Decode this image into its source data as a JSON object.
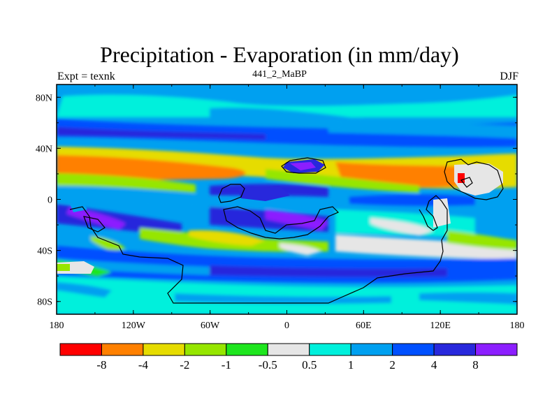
{
  "title": "Precipitation - Evaporation (in mm/day)",
  "experiment_label": "Expt = texnk",
  "case_label": "441_2_MaBP",
  "season_label": "DJF",
  "lat_ticks": [
    "80N",
    "40N",
    "0",
    "40S",
    "80S"
  ],
  "lon_ticks": [
    "180",
    "120W",
    "60W",
    "0",
    "60E",
    "120E",
    "180"
  ],
  "colorbar": {
    "colors": [
      "#ff0000",
      "#ff8000",
      "#e6dc00",
      "#96e600",
      "#1ee61e",
      "#e6e6e6",
      "#00f0dc",
      "#00a0f0",
      "#0050ff",
      "#2828dc",
      "#8c1eff"
    ],
    "labels": [
      "-8",
      "-4",
      "-2",
      "-1",
      "-0.5",
      "0.5",
      "1",
      "2",
      "4",
      "8"
    ]
  },
  "chart_data": {
    "type": "heatmap",
    "title": "Precipitation - Evaporation (in mm/day)",
    "xlabel": "",
    "ylabel": "",
    "x_range": [
      -180,
      180
    ],
    "y_range": [
      -90,
      90
    ],
    "levels": [
      -8,
      -4,
      -2,
      -1,
      -0.5,
      0.5,
      1,
      2,
      4,
      8
    ],
    "bands": [
      {
        "lat": "80N-90N",
        "value_class": "1 to 2"
      },
      {
        "lat": "60N-80N",
        "value_class": "0.5 to 1"
      },
      {
        "lat": "45N-60N",
        "value_class": "2 to 8"
      },
      {
        "lat": "20N-40N",
        "value_class": "-8 to -2"
      },
      {
        "lat": "0-15N",
        "value_class": "-1 to 4"
      },
      {
        "lat": "0-30S",
        "value_class": "2 to 8"
      },
      {
        "lat": "30S-45S",
        "value_class": "-1 to 1"
      },
      {
        "lat": "45S-65S",
        "value_class": "2 to 4"
      },
      {
        "lat": "65S-90S",
        "value_class": "0.5 to 2"
      }
    ]
  }
}
